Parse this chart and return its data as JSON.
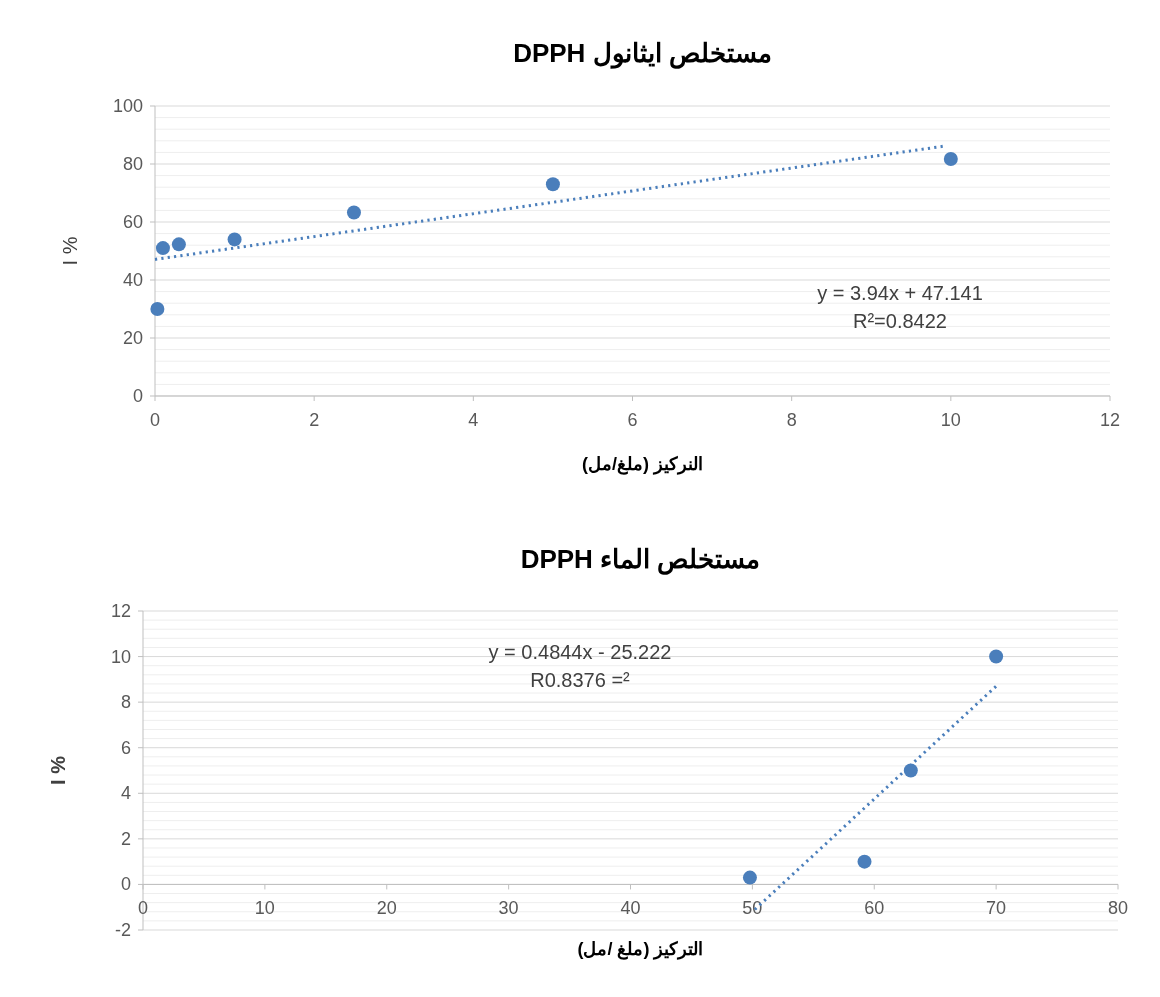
{
  "chart_data": [
    {
      "type": "scatter",
      "title": "مستخلص ايثانول DPPH",
      "xlabel": "النركيز (ملغ/مل)",
      "ylabel": "I %",
      "xlim": [
        0,
        12
      ],
      "ylim": [
        0,
        100
      ],
      "xticks": [
        0,
        2,
        4,
        6,
        8,
        10,
        12
      ],
      "yticks": [
        0,
        20,
        40,
        60,
        80,
        100
      ],
      "grid": "y",
      "series": [
        {
          "type": "scatter",
          "color": "#4a7ebb",
          "marker": "circle",
          "x": [
            0.03,
            0.1,
            0.3,
            1,
            2.5,
            5,
            10
          ],
          "values": [
            30,
            51,
            52.3,
            54,
            63.3,
            73,
            81.7
          ]
        },
        {
          "type": "line",
          "color": "#4a7ebb",
          "line_style": "dotted",
          "x": [
            0,
            9.9
          ],
          "values": [
            47.1,
            86.1
          ]
        }
      ],
      "annotations": [
        "y = 3.94x + 47.141",
        "R²=0.8422"
      ]
    },
    {
      "type": "scatter",
      "title": "مستخلص الماء DPPH",
      "xlabel": "التركيز (ملغ /مل)",
      "ylabel": "I %",
      "xlim": [
        0,
        80
      ],
      "ylim": [
        -2,
        12
      ],
      "xticks": [
        0,
        10,
        20,
        30,
        40,
        50,
        60,
        70,
        80
      ],
      "yticks": [
        -2,
        0,
        2,
        4,
        6,
        8,
        10,
        12
      ],
      "grid": "y",
      "series": [
        {
          "type": "scatter",
          "color": "#4a7ebb",
          "marker": "circle",
          "x": [
            49.8,
            59.2,
            63,
            70
          ],
          "values": [
            0.3,
            1,
            5,
            10
          ]
        },
        {
          "type": "line",
          "color": "#4a7ebb",
          "line_style": "dotted",
          "x": [
            50.2,
            70
          ],
          "values": [
            -1.1,
            8.7
          ]
        }
      ],
      "annotations": [
        "y = 0.4844x - 25.222",
        "R0.8376 =²"
      ]
    }
  ]
}
